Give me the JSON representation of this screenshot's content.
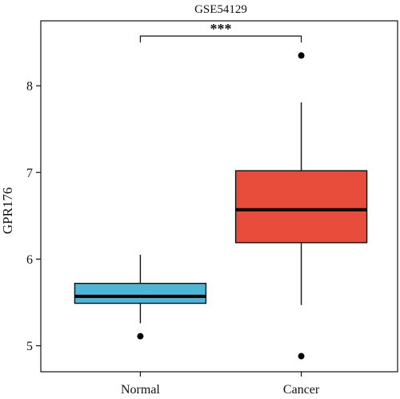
{
  "chart_data": {
    "type": "boxplot",
    "title": "GSE54129",
    "xlabel": "",
    "ylabel": "GPR176",
    "ylim": [
      4.7,
      8.75
    ],
    "yticks": [
      "5",
      "6",
      "7",
      "8"
    ],
    "ytick_values": [
      5,
      6,
      7,
      8
    ],
    "categories": [
      "Normal",
      "Cancer"
    ],
    "boxes": [
      {
        "category": "Normal",
        "whisker_low": 5.26,
        "q1": 5.49,
        "median": 5.57,
        "q3": 5.72,
        "whisker_high": 6.05,
        "outliers": [
          5.11
        ],
        "color": "#4DB5D8"
      },
      {
        "category": "Cancer",
        "whisker_low": 5.47,
        "q1": 6.19,
        "median": 6.57,
        "q3": 7.02,
        "whisker_high": 7.81,
        "outliers": [
          8.35,
          4.88
        ],
        "color": "#E84C3A"
      }
    ],
    "significance": {
      "label": "***",
      "between": [
        "Normal",
        "Cancer"
      ]
    },
    "grid": false,
    "legend": "none"
  }
}
